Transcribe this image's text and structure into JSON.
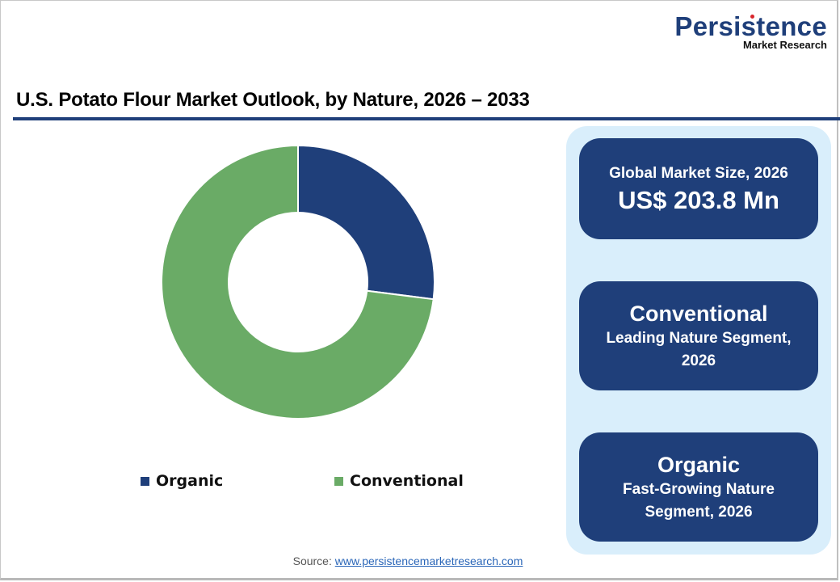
{
  "brand": {
    "name": "Persistence",
    "subtitle": "Market Research"
  },
  "title": "U.S. Potato Flour Market Outlook, by Nature, 2026 – 2033",
  "colors": {
    "organic": "#1f3f7a",
    "conventional": "#6aab66",
    "accent": "#1f3f7a",
    "panel": "#d9eefb"
  },
  "chart_data": {
    "type": "pie",
    "variant": "donut",
    "title": "U.S. Potato Flour Market Outlook, by Nature, 2026 – 2033",
    "categories": [
      "Organic",
      "Conventional"
    ],
    "values": [
      27,
      73
    ],
    "values_are_estimates": true,
    "values_source": "Approximated from slice geometry in the image; the chart shows no data labels or percentages.",
    "unit": "% share (estimated)",
    "colors": [
      "#1f3f7a",
      "#6aab66"
    ],
    "start_angle_deg": 0,
    "direction": "clockwise",
    "legend_position": "bottom",
    "data_labels": false
  },
  "legend": {
    "items": [
      {
        "label": "Organic",
        "color": "#1f3f7a"
      },
      {
        "label": "Conventional",
        "color": "#6aab66"
      }
    ]
  },
  "cards": [
    {
      "line1": "Global Market Size, 2026",
      "line2": "US$ 203.8 Mn"
    },
    {
      "line1": "Conventional",
      "line2": "Leading Nature Segment,",
      "line3": "2026"
    },
    {
      "line1": "Organic",
      "line2": "Fast-Growing Nature",
      "line3": "Segment, 2026"
    }
  ],
  "source": {
    "label": "Source:",
    "link_text": "www.persistencemarketresearch.com"
  }
}
